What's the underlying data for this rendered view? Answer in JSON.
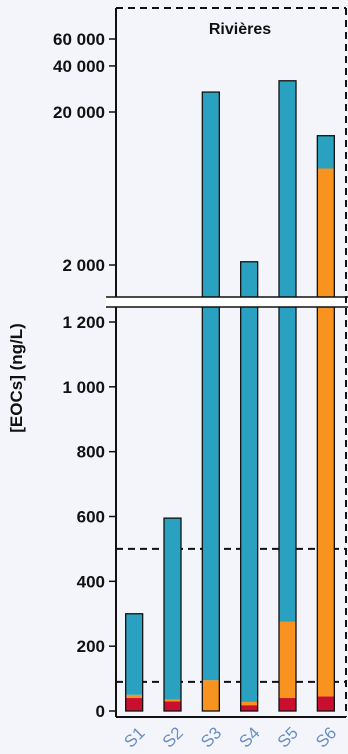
{
  "chart_data": {
    "type": "bar",
    "title": "Rivières",
    "ylabel": "[EOCs] (ng/L)",
    "categories": [
      "S1",
      "S2",
      "S3",
      "S4",
      "S5",
      "S6"
    ],
    "axis_break": true,
    "lower_axis": {
      "ylim": [
        0,
        1300
      ],
      "ticks": [
        0,
        200,
        400,
        600,
        800,
        1000,
        1200
      ],
      "tick_labels": [
        "0",
        "200",
        "400",
        "600",
        "800",
        "1 000",
        "1 200"
      ]
    },
    "upper_axis": {
      "scale": "log",
      "ticks": [
        2000,
        20000,
        40000,
        60000
      ],
      "tick_labels": [
        "2 000",
        "20 000",
        "40 000",
        "60 000"
      ]
    },
    "reference_lines": [
      90,
      500
    ],
    "series": [
      {
        "color": "#c8102e",
        "values": [
          40,
          30,
          0,
          18,
          40,
          45
        ]
      },
      {
        "color": "#f7931e",
        "values": [
          10,
          5,
          95,
          10,
          235,
          8500
        ]
      },
      {
        "color": "#2aa1c0",
        "values": [
          250,
          560,
          26905,
          2072,
          31725,
          5455
        ]
      }
    ],
    "totals": [
      300,
      595,
      27000,
      2100,
      32000,
      14000
    ]
  },
  "colors": {
    "background": "#f3f5fb",
    "break_band": "#ffffff"
  }
}
